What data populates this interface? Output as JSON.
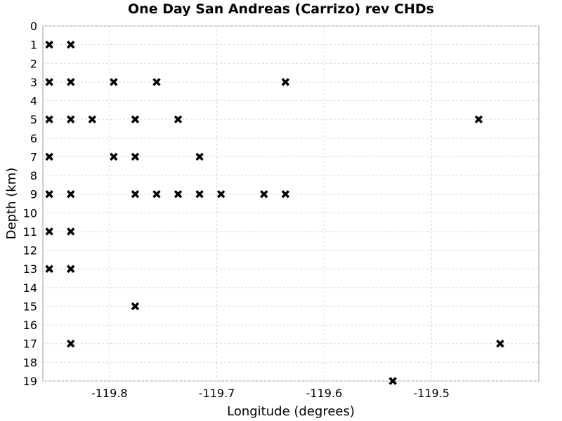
{
  "chart_data": {
    "type": "scatter",
    "title": "One Day San Andreas (Carrizo) rev CHDs",
    "xlabel": "Longitude (degrees)",
    "ylabel": "Depth (km)",
    "xlim": [
      -119.862,
      -119.4
    ],
    "ylim": [
      0,
      19
    ],
    "y_inverted": true,
    "grid": true,
    "marker": "x",
    "marker_color": "#000000",
    "xticks": [
      -119.8,
      -119.7,
      -119.6,
      -119.5
    ],
    "xtick_labels": [
      "-119.8",
      "-119.7",
      "-119.6",
      "-119.5"
    ],
    "yticks": [
      0,
      1,
      2,
      3,
      4,
      5,
      6,
      7,
      8,
      9,
      10,
      11,
      12,
      13,
      14,
      15,
      16,
      17,
      18,
      19
    ],
    "ytick_labels": [
      "0",
      "1",
      "2",
      "3",
      "4",
      "5",
      "6",
      "7",
      "8",
      "9",
      "10",
      "11",
      "12",
      "13",
      "14",
      "15",
      "16",
      "17",
      "18",
      "19"
    ],
    "points": [
      {
        "x": -119.856,
        "y": 1
      },
      {
        "x": -119.836,
        "y": 1
      },
      {
        "x": -119.856,
        "y": 3
      },
      {
        "x": -119.836,
        "y": 3
      },
      {
        "x": -119.796,
        "y": 3
      },
      {
        "x": -119.756,
        "y": 3
      },
      {
        "x": -119.636,
        "y": 3
      },
      {
        "x": -119.856,
        "y": 5
      },
      {
        "x": -119.836,
        "y": 5
      },
      {
        "x": -119.816,
        "y": 5
      },
      {
        "x": -119.776,
        "y": 5
      },
      {
        "x": -119.736,
        "y": 5
      },
      {
        "x": -119.456,
        "y": 5
      },
      {
        "x": -119.856,
        "y": 7
      },
      {
        "x": -119.796,
        "y": 7
      },
      {
        "x": -119.776,
        "y": 7
      },
      {
        "x": -119.716,
        "y": 7
      },
      {
        "x": -119.856,
        "y": 9
      },
      {
        "x": -119.836,
        "y": 9
      },
      {
        "x": -119.776,
        "y": 9
      },
      {
        "x": -119.756,
        "y": 9
      },
      {
        "x": -119.736,
        "y": 9
      },
      {
        "x": -119.716,
        "y": 9
      },
      {
        "x": -119.696,
        "y": 9
      },
      {
        "x": -119.656,
        "y": 9
      },
      {
        "x": -119.636,
        "y": 9
      },
      {
        "x": -119.856,
        "y": 11
      },
      {
        "x": -119.836,
        "y": 11
      },
      {
        "x": -119.856,
        "y": 13
      },
      {
        "x": -119.836,
        "y": 13
      },
      {
        "x": -119.776,
        "y": 15
      },
      {
        "x": -119.836,
        "y": 17
      },
      {
        "x": -119.436,
        "y": 17
      },
      {
        "x": -119.536,
        "y": 19
      }
    ]
  }
}
